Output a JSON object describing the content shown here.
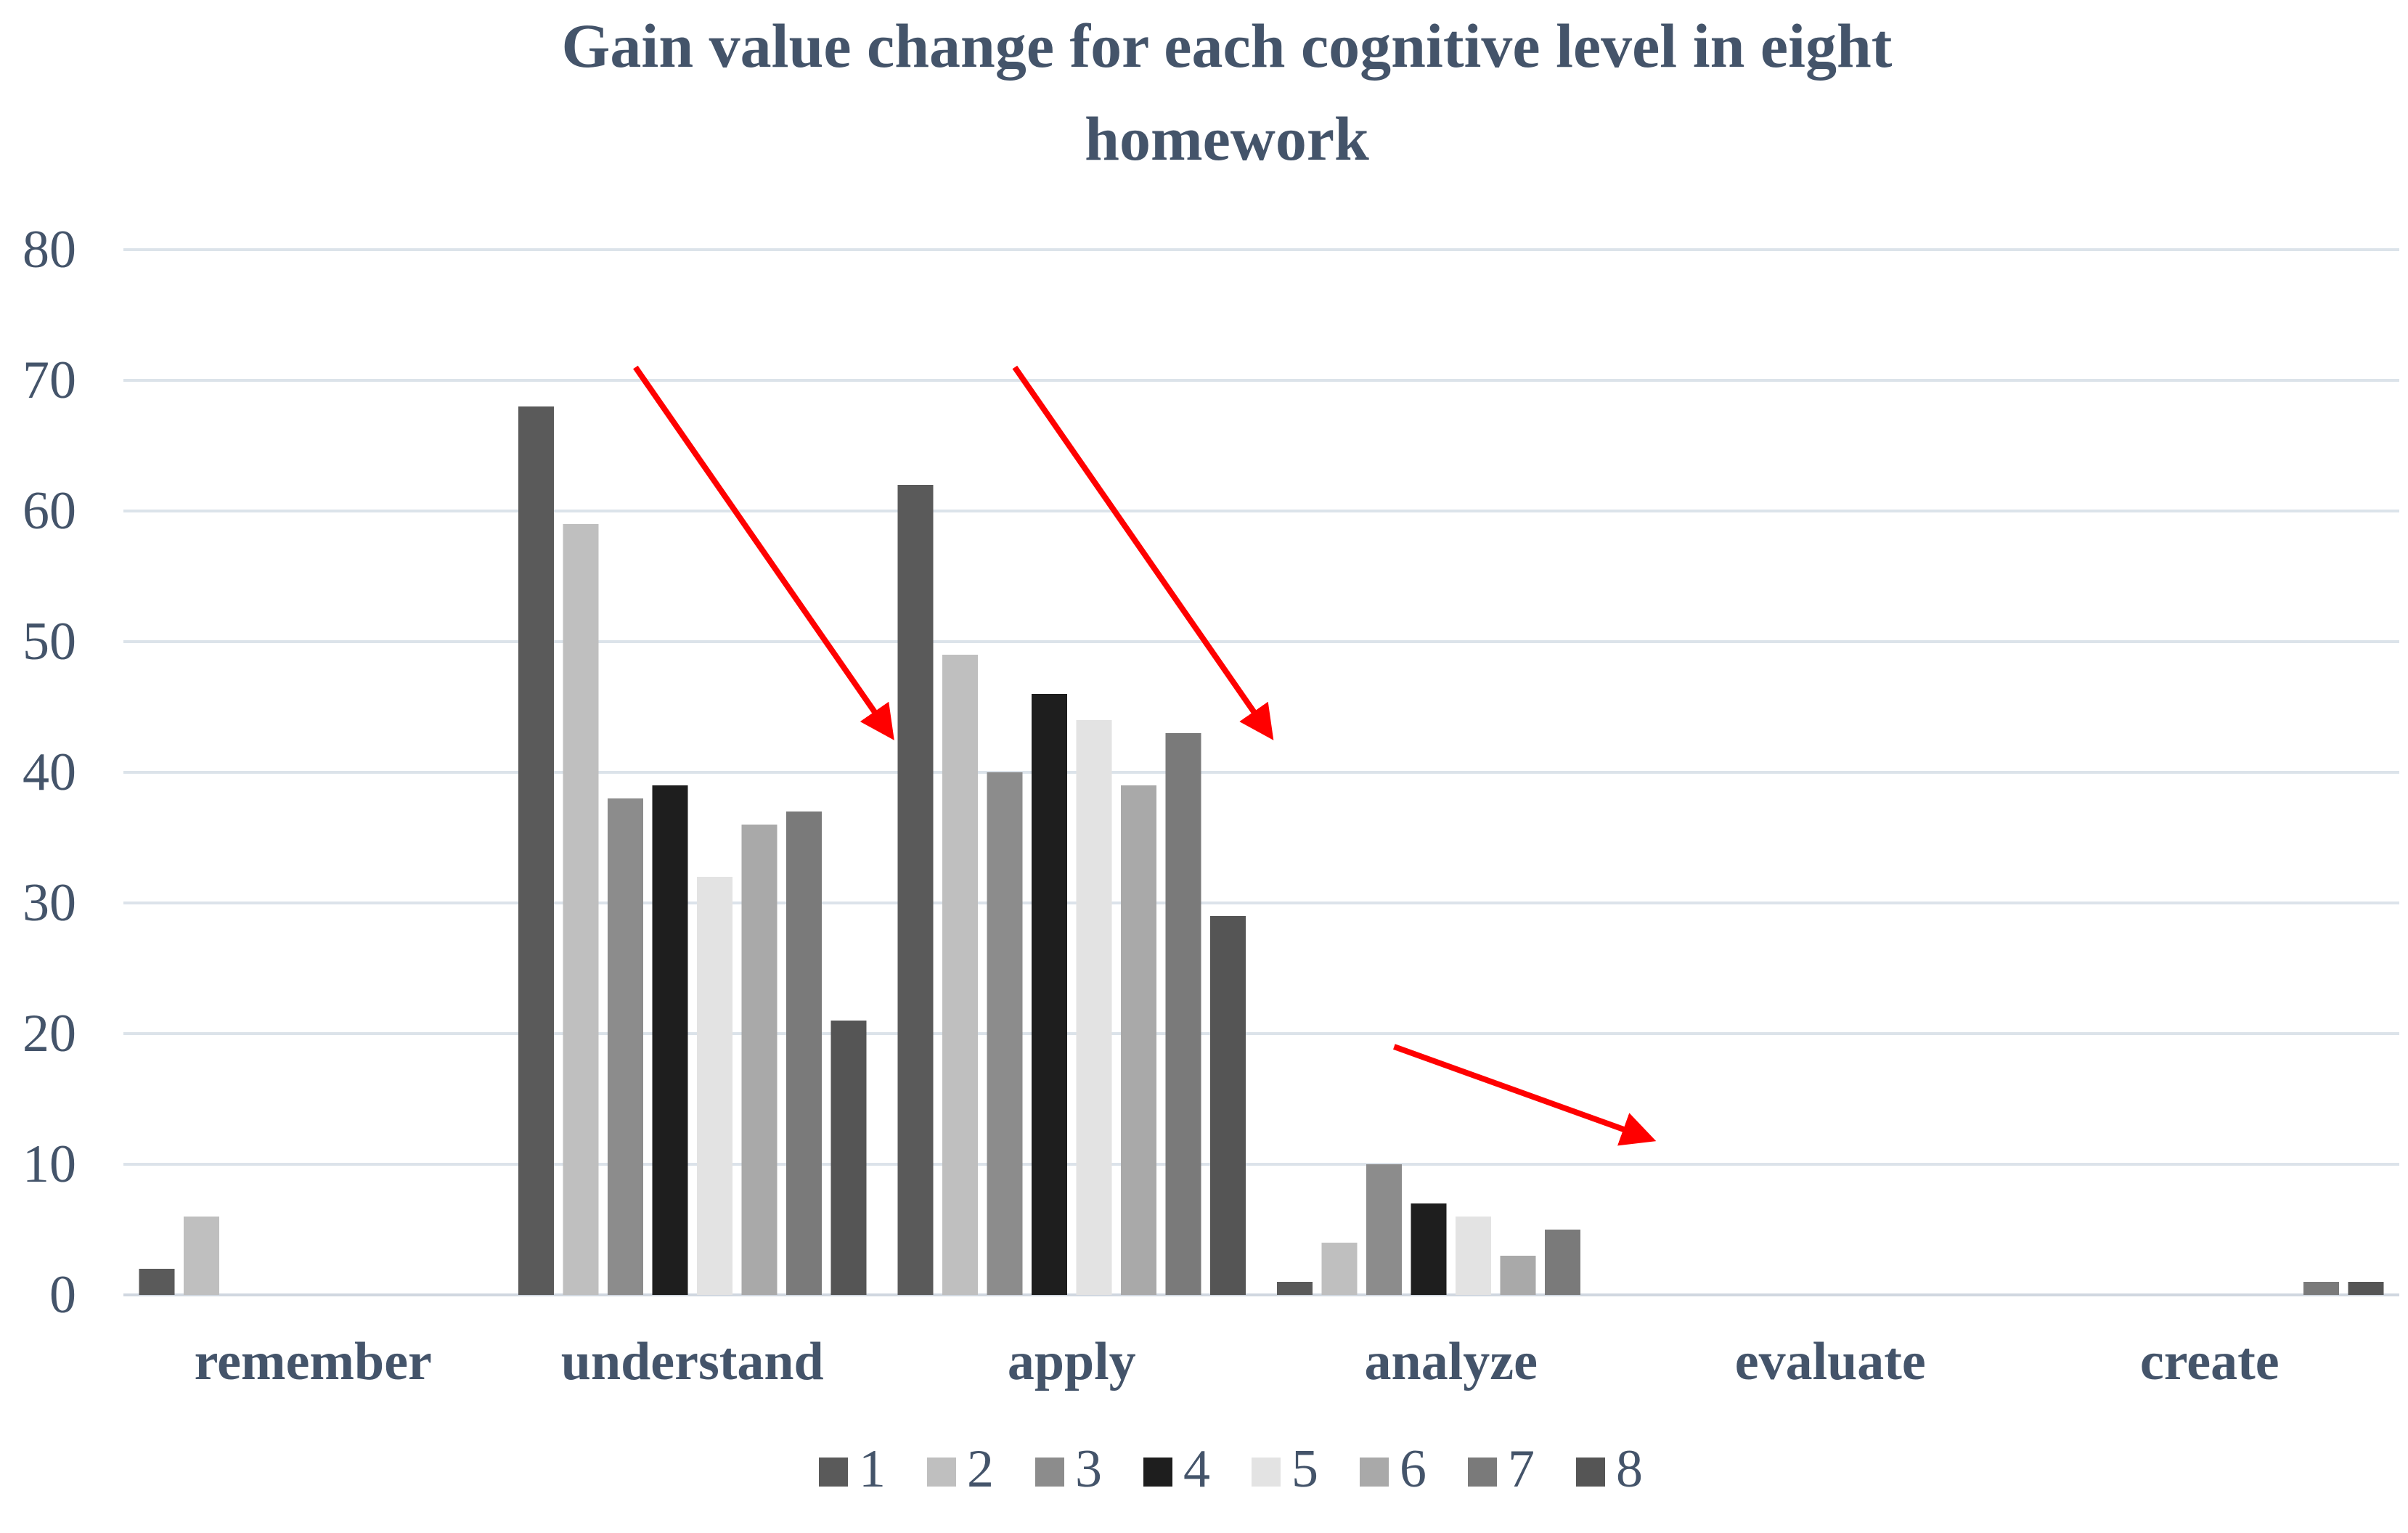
{
  "chart_data": {
    "type": "bar",
    "title_lines": [
      "Gain value change for each cognitive level in eight",
      "homework"
    ],
    "xlabel": "",
    "ylabel": "",
    "ylim": [
      0,
      80
    ],
    "yticks": [
      0,
      10,
      20,
      30,
      40,
      50,
      60,
      70,
      80
    ],
    "grid": true,
    "legend_position": "bottom",
    "categories": [
      "remember",
      "understand",
      "apply",
      "analyze",
      "evaluate",
      "create"
    ],
    "series": [
      {
        "name": "1",
        "values": [
          2,
          68,
          62,
          1,
          0,
          0
        ],
        "color": "#5A5A5A"
      },
      {
        "name": "2",
        "values": [
          6,
          59,
          49,
          4,
          0,
          0
        ],
        "color": "#BFBFBF"
      },
      {
        "name": "3",
        "values": [
          0,
          38,
          40,
          10,
          0,
          0
        ],
        "color": "#8C8C8C"
      },
      {
        "name": "4",
        "values": [
          0,
          39,
          46,
          7,
          0,
          0
        ],
        "color": "#1E1E1E"
      },
      {
        "name": "5",
        "values": [
          0,
          32,
          44,
          6,
          0,
          0
        ],
        "color": "#E3E3E3"
      },
      {
        "name": "6",
        "values": [
          0,
          36,
          39,
          3,
          0,
          0
        ],
        "color": "#A9A9A9"
      },
      {
        "name": "7",
        "values": [
          0,
          37,
          43,
          5,
          0,
          1
        ],
        "color": "#7A7A7A"
      },
      {
        "name": "8",
        "values": [
          0,
          21,
          29,
          0,
          0,
          1
        ],
        "color": "#555555"
      }
    ],
    "annotations": [
      {
        "type": "arrow",
        "color": "#FF0000",
        "from_value": {
          "category": "understand",
          "y": 71
        },
        "to_value": {
          "category": "apply",
          "y": 43
        }
      },
      {
        "type": "arrow",
        "color": "#FF0000",
        "from_value": {
          "category": "apply",
          "y": 71
        },
        "to_value": {
          "category": "analyze",
          "y": 43
        }
      },
      {
        "type": "arrow",
        "color": "#FF0000",
        "from_value": {
          "category": "analyze",
          "y": 19
        },
        "to_value": {
          "category": "evaluate",
          "y": 12
        }
      }
    ]
  }
}
